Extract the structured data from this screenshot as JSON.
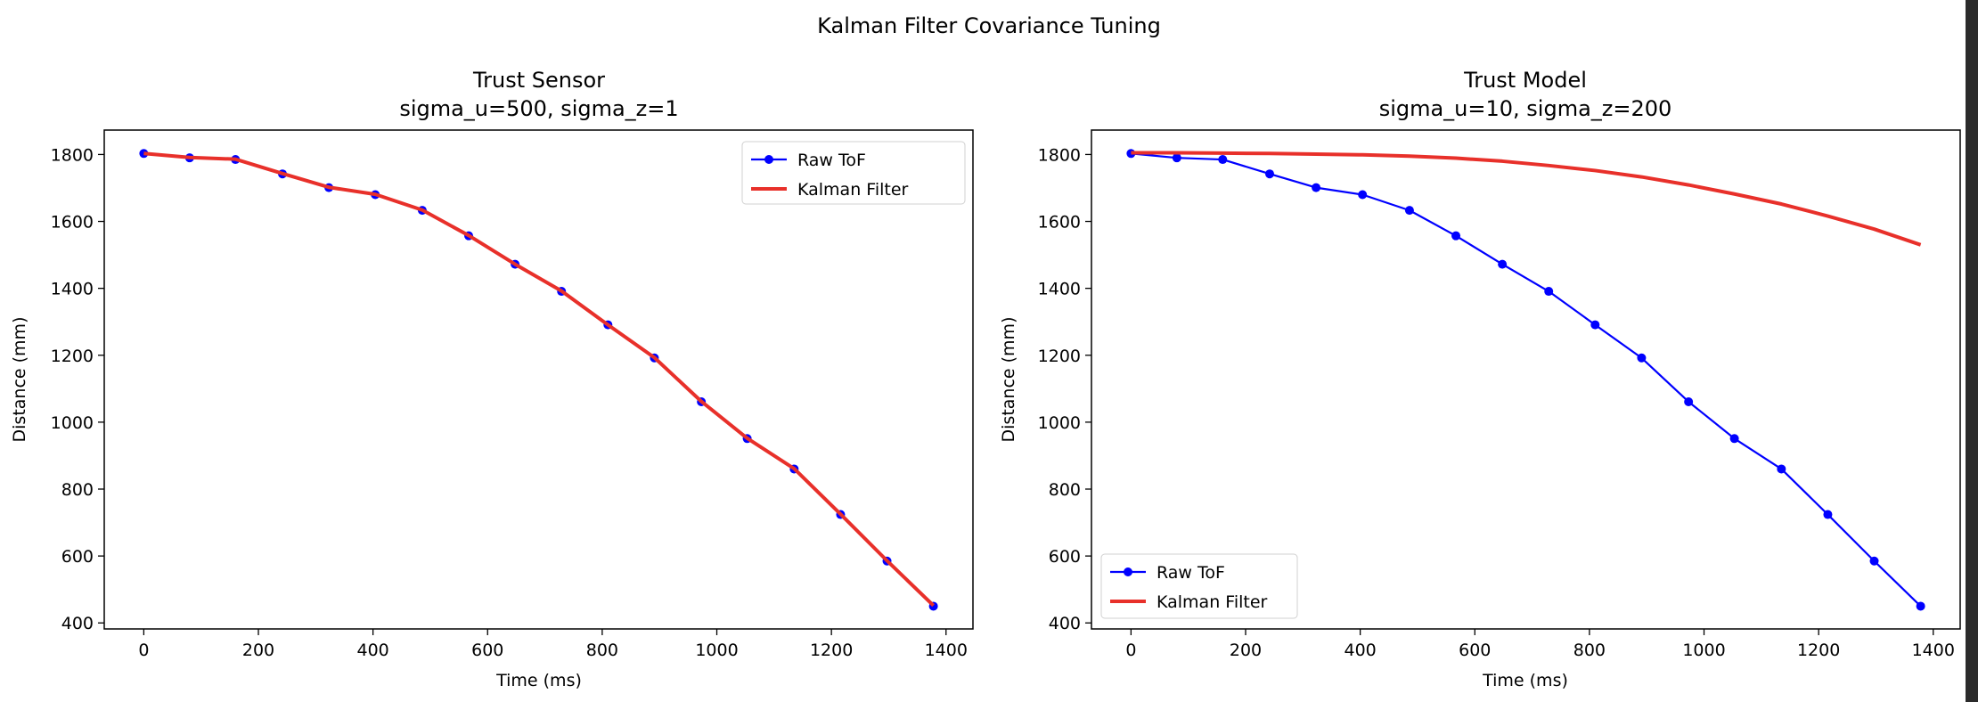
{
  "figure": {
    "suptitle": "Kalman Filter Covariance Tuning"
  },
  "chart_data": [
    {
      "type": "line",
      "title": "Trust Sensor",
      "subtitle": "sigma_u=500, sigma_z=1",
      "xlabel": "Time (ms)",
      "ylabel": "Distance (mm)",
      "xlim": [
        -69,
        1447
      ],
      "ylim": [
        382,
        1873
      ],
      "xticks": [
        0,
        200,
        400,
        600,
        800,
        1000,
        1200,
        1400
      ],
      "yticks": [
        400,
        600,
        800,
        1000,
        1200,
        1400,
        1600,
        1800
      ],
      "grid": false,
      "legend": "top-right",
      "series": [
        {
          "name": "Raw ToF",
          "color": "#0000ff",
          "marker": "circle",
          "x": [
            0,
            80,
            160,
            242,
            323,
            404,
            486,
            567,
            648,
            729,
            810,
            891,
            973,
            1053,
            1135,
            1216,
            1297,
            1378
          ],
          "y": [
            1803,
            1790,
            1785,
            1742,
            1701,
            1680,
            1633,
            1557,
            1472,
            1391,
            1291,
            1192,
            1061,
            951,
            860,
            724,
            585,
            450
          ]
        },
        {
          "name": "Kalman Filter",
          "color": "#e8302a",
          "marker": "none",
          "x": [
            0,
            80,
            160,
            242,
            323,
            404,
            486,
            567,
            648,
            729,
            810,
            891,
            973,
            1053,
            1135,
            1216,
            1297,
            1378
          ],
          "y": [
            1803,
            1791,
            1786,
            1743,
            1702,
            1681,
            1634,
            1558,
            1472,
            1392,
            1291,
            1193,
            1062,
            952,
            861,
            725,
            586,
            452
          ]
        }
      ]
    },
    {
      "type": "line",
      "title": "Trust Model",
      "subtitle": "sigma_u=10, sigma_z=200",
      "xlabel": "Time (ms)",
      "ylabel": "Distance (mm)",
      "xlim": [
        -69,
        1447
      ],
      "ylim": [
        382,
        1873
      ],
      "xticks": [
        0,
        200,
        400,
        600,
        800,
        1000,
        1200,
        1400
      ],
      "yticks": [
        400,
        600,
        800,
        1000,
        1200,
        1400,
        1600,
        1800
      ],
      "grid": false,
      "legend": "bottom-left",
      "series": [
        {
          "name": "Raw ToF",
          "color": "#0000ff",
          "marker": "circle",
          "x": [
            0,
            80,
            160,
            242,
            323,
            404,
            486,
            567,
            648,
            729,
            810,
            891,
            973,
            1053,
            1135,
            1216,
            1297,
            1378
          ],
          "y": [
            1803,
            1790,
            1785,
            1742,
            1701,
            1680,
            1633,
            1557,
            1472,
            1391,
            1291,
            1192,
            1061,
            951,
            860,
            724,
            585,
            450
          ]
        },
        {
          "name": "Kalman Filter",
          "color": "#e8302a",
          "marker": "none",
          "x": [
            0,
            80,
            160,
            242,
            323,
            404,
            486,
            567,
            648,
            729,
            810,
            891,
            973,
            1053,
            1135,
            1216,
            1297,
            1378
          ],
          "y": [
            1805,
            1805,
            1804,
            1803,
            1801,
            1799,
            1795,
            1789,
            1780,
            1767,
            1752,
            1733,
            1709,
            1682,
            1652,
            1616,
            1577,
            1530
          ]
        }
      ]
    }
  ]
}
